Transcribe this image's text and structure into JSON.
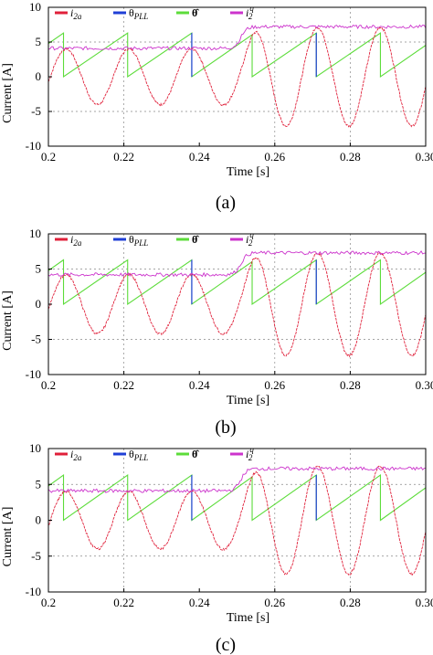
{
  "figure": {
    "colors": {
      "i2a": "#e0203a",
      "theta_pll": "#1f3fd6",
      "theta_hat": "#5cdc3a",
      "i2q": "#cc33cc",
      "grid": "#888888",
      "frame": "#000000"
    }
  },
  "chart_data": [
    {
      "type": "line",
      "caption": "(a)",
      "xlabel": "Time [s]",
      "ylabel": "Current [A]",
      "xlim": [
        0.2,
        0.3
      ],
      "ylim": [
        -10,
        10
      ],
      "xticks": [
        "0.2",
        "0.22",
        "0.24",
        "0.26",
        "0.28",
        "0.30"
      ],
      "yticks": [
        "10",
        "5",
        "0",
        "-5",
        "-10"
      ],
      "grid": "dashed",
      "legend_position": "top",
      "legend": [
        "i2a",
        "θPLL",
        "θ̂",
        "i2q"
      ],
      "step_time": 0.25,
      "series": [
        {
          "name": "i2a",
          "amplitude_before": 4.0,
          "amplitude_after": 7.1,
          "frequency_hz": 60,
          "negative_peaks": [
            0.213,
            0.229,
            0.246,
            0.262,
            0.279,
            0.296
          ]
        },
        {
          "name": "θPLL",
          "range": [
            0,
            6.3
          ],
          "resets": [
            0.204,
            0.221,
            0.238,
            0.254,
            0.271,
            0.288
          ]
        },
        {
          "name": "θ̂",
          "range": [
            0,
            6.3
          ],
          "resets": [
            0.204,
            0.221,
            0.238,
            0.254,
            0.271,
            0.288
          ]
        },
        {
          "name": "i2q",
          "before": 4.1,
          "after": 7.2
        }
      ]
    },
    {
      "type": "line",
      "caption": "(b)",
      "xlabel": "Time [s]",
      "ylabel": "Current [A]",
      "xlim": [
        0.2,
        0.3
      ],
      "ylim": [
        -10,
        10
      ],
      "xticks": [
        "0.2",
        "0.22",
        "0.24",
        "0.26",
        "0.28",
        "0.30"
      ],
      "yticks": [
        "10",
        "5",
        "0",
        "-5",
        "-10"
      ],
      "grid": "dashed",
      "legend_position": "top",
      "legend": [
        "i2a",
        "θPLL",
        "θ̂",
        "i2q"
      ],
      "step_time": 0.25,
      "series": [
        {
          "name": "i2a",
          "amplitude_before": 4.2,
          "amplitude_after": 7.3,
          "frequency_hz": 60,
          "negative_peaks": [
            0.213,
            0.229,
            0.246,
            0.262,
            0.279,
            0.296
          ]
        },
        {
          "name": "θPLL",
          "range": [
            0,
            6.3
          ],
          "resets": [
            0.204,
            0.221,
            0.238,
            0.254,
            0.271,
            0.288
          ]
        },
        {
          "name": "θ̂",
          "range": [
            0,
            6.3
          ],
          "resets": [
            0.204,
            0.221,
            0.238,
            0.254,
            0.271,
            0.288
          ]
        },
        {
          "name": "i2q",
          "before": 4.2,
          "after": 7.3
        }
      ]
    },
    {
      "type": "line",
      "caption": "(c)",
      "xlabel": "Time [s]",
      "ylabel": "Current [A]",
      "xlim": [
        0.2,
        0.3
      ],
      "ylim": [
        -10,
        10
      ],
      "xticks": [
        "0.2",
        "0.22",
        "0.24",
        "0.26",
        "0.28",
        "0.30"
      ],
      "yticks": [
        "10",
        "5",
        "0",
        "-5",
        "-10"
      ],
      "grid": "dashed",
      "legend_position": "top",
      "legend": [
        "i2a",
        "θPLL",
        "θ̂",
        "i2q"
      ],
      "step_time": 0.25,
      "series": [
        {
          "name": "i2a",
          "amplitude_before": 4.0,
          "amplitude_after": 7.5,
          "frequency_hz": 60,
          "negative_peaks": [
            0.213,
            0.229,
            0.246,
            0.262,
            0.279,
            0.296
          ]
        },
        {
          "name": "θPLL",
          "range": [
            0,
            6.3
          ],
          "resets": [
            0.204,
            0.221,
            0.238,
            0.254,
            0.271,
            0.288
          ]
        },
        {
          "name": "θ̂",
          "range": [
            0,
            6.3
          ],
          "resets": [
            0.204,
            0.221,
            0.238,
            0.254,
            0.271,
            0.288
          ]
        },
        {
          "name": "i2q",
          "before": 4.1,
          "after": 7.2
        }
      ]
    }
  ]
}
